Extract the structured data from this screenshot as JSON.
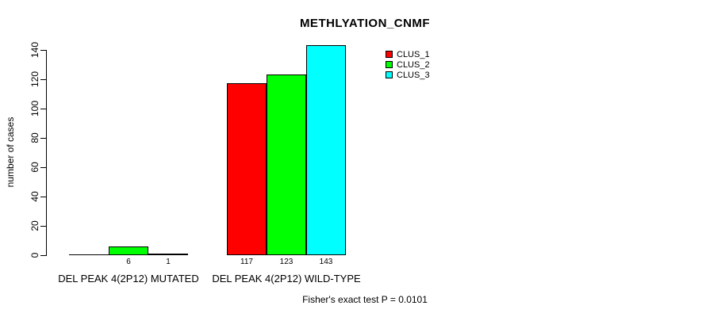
{
  "chart_data": {
    "type": "bar",
    "title": "METHLYATION_CNMF",
    "ylabel": "number of cases",
    "xlabel": "",
    "groups": [
      "DEL PEAK 4(2P12) MUTATED",
      "DEL PEAK 4(2P12) WILD-TYPE"
    ],
    "series": [
      {
        "name": "CLUS_1",
        "color": "#ff0000",
        "values": [
          0,
          117
        ]
      },
      {
        "name": "CLUS_2",
        "color": "#00ff00",
        "values": [
          6,
          123
        ]
      },
      {
        "name": "CLUS_3",
        "color": "#00ffff",
        "values": [
          1,
          143
        ]
      }
    ],
    "bar_value_labels": [
      [
        "",
        "6",
        "1"
      ],
      [
        "117",
        "123",
        "143"
      ]
    ],
    "yticks": [
      0,
      20,
      40,
      60,
      80,
      100,
      120,
      140
    ],
    "ylim": [
      0,
      143
    ],
    "grid": false,
    "legend": {
      "position": "top-right",
      "entries": [
        "CLUS_1",
        "CLUS_2",
        "CLUS_3"
      ]
    },
    "footer": "Fisher's exact test P = 0.0101",
    "colors": {
      "background": "#ffffff",
      "axis": "#000000",
      "text": "#000000"
    }
  }
}
